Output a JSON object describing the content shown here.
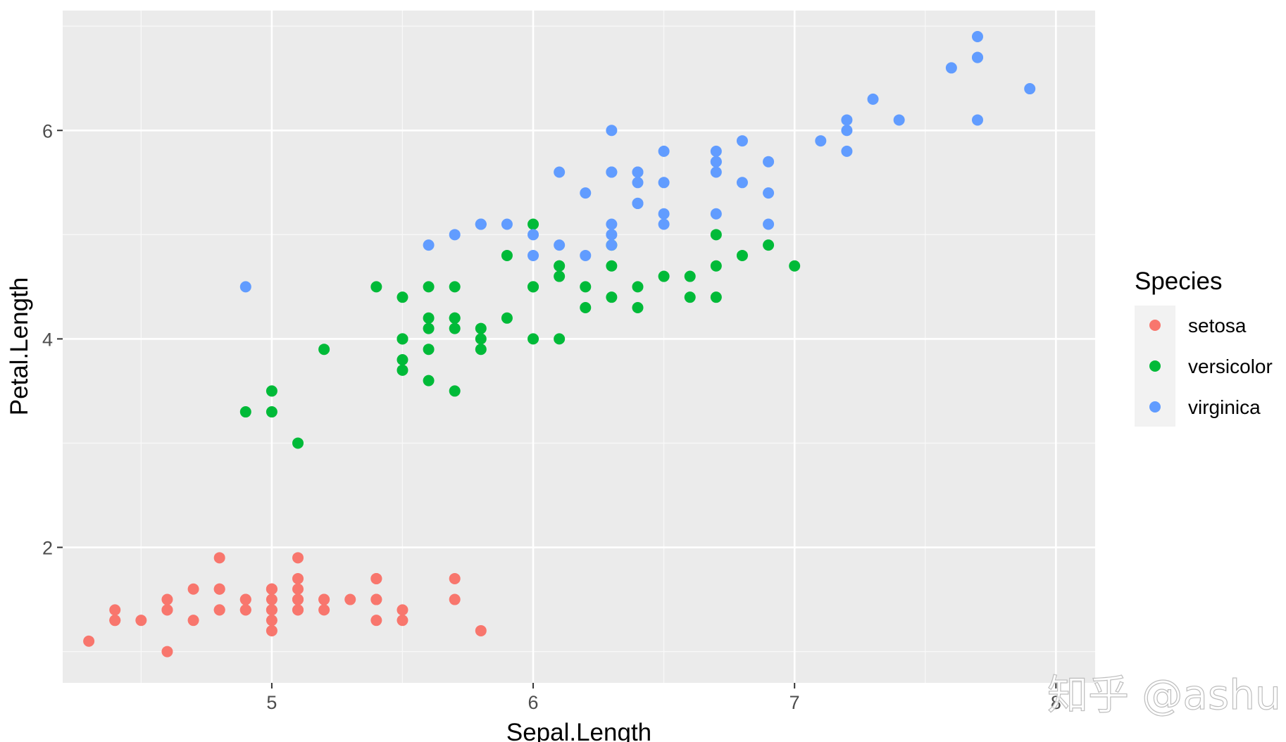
{
  "chart_data": {
    "type": "scatter",
    "xlabel": "Sepal.Length",
    "ylabel": "Petal.Length",
    "xlim": [
      4.2,
      8.15
    ],
    "ylim": [
      0.7,
      7.15
    ],
    "x_ticks": [
      5,
      6,
      7,
      8
    ],
    "x_tick_labels": [
      "5",
      "6",
      "7",
      "8"
    ],
    "x_minor_ticks": [
      4.5,
      5.5,
      6.5,
      7.5
    ],
    "y_ticks": [
      2,
      4,
      6
    ],
    "y_tick_labels": [
      "2",
      "4",
      "6"
    ],
    "y_minor_ticks": [
      1,
      3,
      5,
      7
    ],
    "grid": true,
    "legend": {
      "title": "Species",
      "position": "right"
    },
    "series": [
      {
        "name": "setosa",
        "color": "#F8766D",
        "points": [
          [
            5.1,
            1.4
          ],
          [
            4.9,
            1.4
          ],
          [
            4.7,
            1.3
          ],
          [
            4.6,
            1.5
          ],
          [
            5.0,
            1.4
          ],
          [
            5.4,
            1.7
          ],
          [
            4.6,
            1.4
          ],
          [
            5.0,
            1.5
          ],
          [
            4.4,
            1.4
          ],
          [
            4.9,
            1.5
          ],
          [
            5.4,
            1.5
          ],
          [
            4.8,
            1.6
          ],
          [
            4.8,
            1.4
          ],
          [
            4.3,
            1.1
          ],
          [
            5.8,
            1.2
          ],
          [
            5.7,
            1.5
          ],
          [
            5.4,
            1.3
          ],
          [
            5.1,
            1.4
          ],
          [
            5.7,
            1.7
          ],
          [
            5.1,
            1.5
          ],
          [
            5.4,
            1.7
          ],
          [
            5.1,
            1.5
          ],
          [
            4.6,
            1.0
          ],
          [
            5.1,
            1.7
          ],
          [
            4.8,
            1.9
          ],
          [
            5.0,
            1.6
          ],
          [
            5.0,
            1.6
          ],
          [
            5.2,
            1.5
          ],
          [
            5.2,
            1.4
          ],
          [
            4.7,
            1.6
          ],
          [
            4.8,
            1.6
          ],
          [
            5.4,
            1.5
          ],
          [
            5.2,
            1.5
          ],
          [
            5.5,
            1.4
          ],
          [
            4.9,
            1.5
          ],
          [
            5.0,
            1.2
          ],
          [
            5.5,
            1.3
          ],
          [
            4.9,
            1.4
          ],
          [
            4.4,
            1.3
          ],
          [
            5.1,
            1.5
          ],
          [
            5.0,
            1.3
          ],
          [
            4.5,
            1.3
          ],
          [
            4.4,
            1.3
          ],
          [
            5.0,
            1.6
          ],
          [
            5.1,
            1.9
          ],
          [
            4.8,
            1.4
          ],
          [
            5.1,
            1.6
          ],
          [
            4.6,
            1.4
          ],
          [
            5.3,
            1.5
          ],
          [
            5.0,
            1.4
          ]
        ]
      },
      {
        "name": "versicolor",
        "color": "#00BA38",
        "points": [
          [
            7.0,
            4.7
          ],
          [
            6.4,
            4.5
          ],
          [
            6.9,
            4.9
          ],
          [
            5.5,
            4.0
          ],
          [
            6.5,
            4.6
          ],
          [
            5.7,
            4.5
          ],
          [
            6.3,
            4.7
          ],
          [
            4.9,
            3.3
          ],
          [
            6.6,
            4.6
          ],
          [
            5.2,
            3.9
          ],
          [
            5.0,
            3.5
          ],
          [
            5.9,
            4.2
          ],
          [
            6.0,
            4.0
          ],
          [
            6.1,
            4.7
          ],
          [
            5.6,
            3.6
          ],
          [
            6.7,
            4.4
          ],
          [
            5.6,
            4.5
          ],
          [
            5.8,
            4.1
          ],
          [
            6.2,
            4.5
          ],
          [
            5.6,
            3.9
          ],
          [
            5.9,
            4.8
          ],
          [
            6.1,
            4.0
          ],
          [
            6.3,
            4.9
          ],
          [
            6.1,
            4.7
          ],
          [
            6.4,
            4.3
          ],
          [
            6.6,
            4.4
          ],
          [
            6.8,
            4.8
          ],
          [
            6.7,
            5.0
          ],
          [
            6.0,
            4.5
          ],
          [
            5.7,
            3.5
          ],
          [
            5.5,
            3.8
          ],
          [
            5.5,
            3.7
          ],
          [
            5.8,
            3.9
          ],
          [
            6.0,
            5.1
          ],
          [
            5.4,
            4.5
          ],
          [
            6.0,
            4.5
          ],
          [
            6.7,
            4.7
          ],
          [
            6.3,
            4.4
          ],
          [
            5.6,
            4.1
          ],
          [
            5.5,
            4.0
          ],
          [
            5.5,
            4.4
          ],
          [
            6.1,
            4.6
          ],
          [
            5.8,
            4.0
          ],
          [
            5.0,
            3.3
          ],
          [
            5.6,
            4.2
          ],
          [
            5.7,
            4.2
          ],
          [
            5.7,
            4.2
          ],
          [
            6.2,
            4.3
          ],
          [
            5.1,
            3.0
          ],
          [
            5.7,
            4.1
          ]
        ]
      },
      {
        "name": "virginica",
        "color": "#619CFF",
        "points": [
          [
            6.3,
            6.0
          ],
          [
            5.8,
            5.1
          ],
          [
            7.1,
            5.9
          ],
          [
            6.3,
            5.6
          ],
          [
            6.5,
            5.8
          ],
          [
            7.6,
            6.6
          ],
          [
            4.9,
            4.5
          ],
          [
            7.3,
            6.3
          ],
          [
            6.7,
            5.8
          ],
          [
            7.2,
            6.1
          ],
          [
            6.5,
            5.1
          ],
          [
            6.4,
            5.3
          ],
          [
            6.8,
            5.5
          ],
          [
            5.7,
            5.0
          ],
          [
            5.8,
            5.1
          ],
          [
            6.4,
            5.3
          ],
          [
            6.5,
            5.5
          ],
          [
            7.7,
            6.7
          ],
          [
            7.7,
            6.9
          ],
          [
            6.0,
            5.0
          ],
          [
            6.9,
            5.7
          ],
          [
            5.6,
            4.9
          ],
          [
            7.7,
            6.7
          ],
          [
            6.3,
            4.9
          ],
          [
            6.7,
            5.7
          ],
          [
            7.2,
            6.0
          ],
          [
            6.2,
            4.8
          ],
          [
            6.1,
            4.9
          ],
          [
            6.4,
            5.6
          ],
          [
            7.2,
            5.8
          ],
          [
            7.4,
            6.1
          ],
          [
            7.9,
            6.4
          ],
          [
            6.4,
            5.6
          ],
          [
            6.3,
            5.1
          ],
          [
            6.1,
            5.6
          ],
          [
            7.7,
            6.1
          ],
          [
            6.3,
            5.6
          ],
          [
            6.4,
            5.5
          ],
          [
            6.0,
            4.8
          ],
          [
            6.9,
            5.4
          ],
          [
            6.7,
            5.6
          ],
          [
            6.9,
            5.1
          ],
          [
            5.8,
            5.1
          ],
          [
            6.8,
            5.9
          ],
          [
            6.7,
            5.7
          ],
          [
            6.7,
            5.2
          ],
          [
            6.3,
            5.0
          ],
          [
            6.5,
            5.2
          ],
          [
            6.2,
            5.4
          ],
          [
            5.9,
            5.1
          ]
        ]
      }
    ]
  },
  "watermark": "知乎 @ashu"
}
